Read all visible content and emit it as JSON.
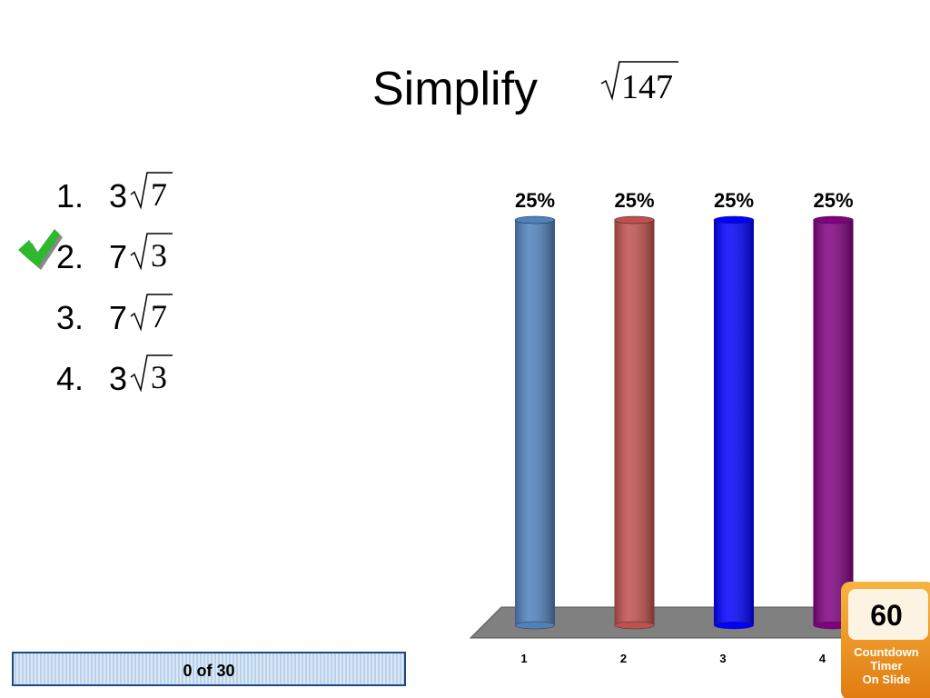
{
  "slide": {
    "title": "Simplify",
    "title_radicand": "147",
    "options": [
      {
        "number": "1.",
        "coefficient": "3",
        "radicand": "7"
      },
      {
        "number": "2.",
        "coefficient": "7",
        "radicand": "3"
      },
      {
        "number": "3.",
        "coefficient": "7",
        "radicand": "7"
      },
      {
        "number": "4.",
        "coefficient": "3",
        "radicand": "3"
      }
    ],
    "response_counter": "0 of 30",
    "timer": {
      "seconds": "60",
      "caption": [
        "Countdown",
        "Timer",
        "On Slide"
      ]
    }
  },
  "chart_data": {
    "type": "bar",
    "categories": [
      "1",
      "2",
      "3",
      "4"
    ],
    "values": [
      25,
      25,
      25,
      25
    ],
    "value_labels": [
      "25%",
      "25%",
      "25%",
      "25%"
    ],
    "colors": [
      "#4f81bd",
      "#c0504d",
      "#0000ff",
      "#800080"
    ]
  }
}
